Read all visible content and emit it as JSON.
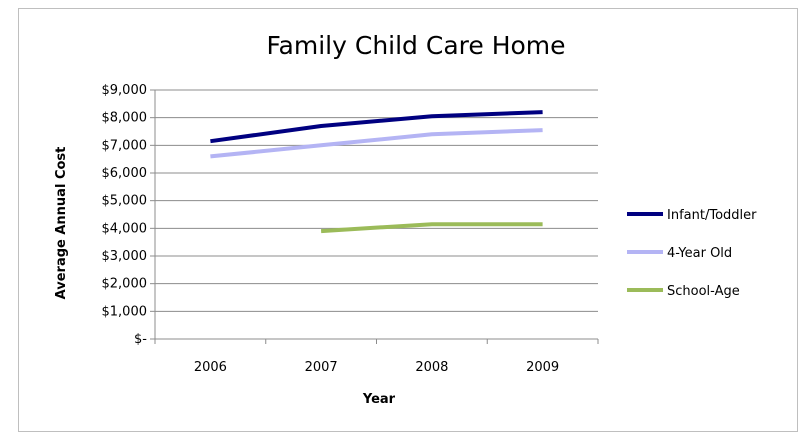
{
  "chart_data": {
    "type": "line",
    "title": "Family Child Care Home",
    "xlabel": "Year",
    "ylabel": "Average Annual Cost",
    "categories": [
      "2006",
      "2007",
      "2008",
      "2009"
    ],
    "ylim": [
      0,
      9000
    ],
    "y_ticks": [
      0,
      1000,
      2000,
      3000,
      4000,
      5000,
      6000,
      7000,
      8000,
      9000
    ],
    "y_tick_labels": [
      "$-",
      "$1,000",
      "$2,000",
      "$3,000",
      "$4,000",
      "$5,000",
      "$6,000",
      "$7,000",
      "$8,000",
      "$9,000"
    ],
    "grid": true,
    "legend_position": "right",
    "series": [
      {
        "name": "Infant/Toddler",
        "color": "#000080",
        "values": [
          7150,
          7700,
          8050,
          8200
        ]
      },
      {
        "name": "4-Year Old",
        "color": "#b4b4f4",
        "values": [
          6600,
          7000,
          7400,
          7550
        ]
      },
      {
        "name": "School-Age",
        "color": "#9bbb59",
        "values": [
          null,
          3900,
          4150,
          4150
        ]
      }
    ]
  }
}
